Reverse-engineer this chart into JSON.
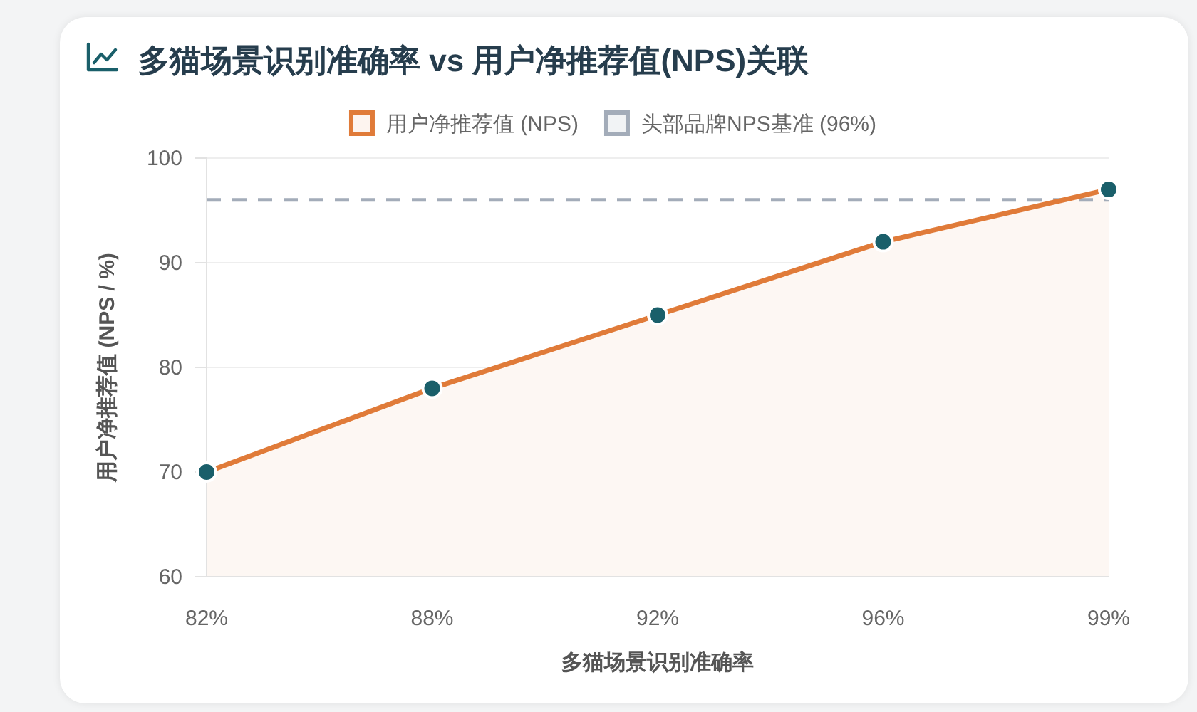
{
  "chart_data": {
    "type": "area",
    "title": "多猫场景识别准确率 vs 用户净推荐值(NPS)关联",
    "xlabel": "多猫场景识别准确率",
    "ylabel": "用户净推荐值 (NPS / %)",
    "categories": [
      "82%",
      "88%",
      "92%",
      "96%",
      "99%"
    ],
    "series": [
      {
        "name": "用户净推荐值 (NPS)",
        "color": "#e07b39",
        "colors": [
          "#1a5f6a",
          "#1a5f6a",
          "#1a5f6a",
          "#1a5f6a",
          "#1a5f6a"
        ],
        "values": [
          70,
          78,
          85,
          92,
          97
        ]
      }
    ],
    "ylim": [
      60,
      100
    ],
    "yticks": [
      60,
      70,
      80,
      90,
      100
    ],
    "grid": "y",
    "legend": "top",
    "marker": "circle",
    "line_style": "solid",
    "ref_lines": [
      {
        "axis": "y",
        "value": 96,
        "label": "头部品牌NPS基准 (96%)",
        "color": "#a3acb9",
        "line_style": "dashed"
      }
    ]
  }
}
